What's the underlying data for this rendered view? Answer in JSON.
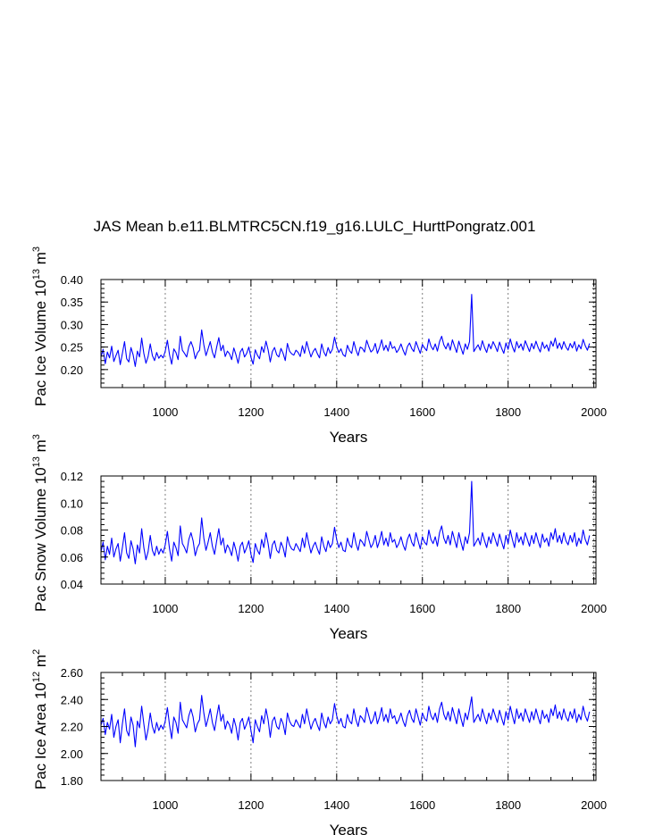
{
  "title": "JAS Mean b.e11.BLMTRC5CN.f19_g16.LULC_HurttPongratz.001",
  "colors": {
    "series": "#0000ff",
    "axes": "#000000",
    "reference": "#7f7f7f"
  },
  "chart_data": [
    {
      "type": "line",
      "title": "JAS Mean b.e11.BLMTRC5CN.f19_g16.LULC_HurttPongratz.001",
      "xlabel": "Years",
      "ylabel": "Pac Ice Volume 10¹³ m³",
      "ylabel_parts": {
        "main": "Pac Ice Volume 10",
        "exp1": "13",
        "unit": " m",
        "exp2": "3"
      },
      "xlim": [
        850,
        2005
      ],
      "ylim": [
        0.16,
        0.4
      ],
      "xticks": [
        "1000",
        "1200",
        "1400",
        "1600",
        "1800",
        "2000"
      ],
      "yticks": [
        "0.20",
        "0.25",
        "0.30",
        "0.35",
        "0.40"
      ],
      "reference_years": [
        1000,
        1200,
        1400,
        1600,
        1800,
        2000
      ],
      "grid": false,
      "series": [
        {
          "x_start": 850,
          "x_step": 5,
          "values": [
            0.228,
            0.245,
            0.213,
            0.239,
            0.226,
            0.252,
            0.218,
            0.231,
            0.243,
            0.211,
            0.236,
            0.262,
            0.224,
            0.217,
            0.249,
            0.233,
            0.207,
            0.241,
            0.228,
            0.27,
            0.236,
            0.214,
            0.229,
            0.257,
            0.231,
            0.22,
            0.238,
            0.225,
            0.232,
            0.226,
            0.241,
            0.265,
            0.233,
            0.212,
            0.246,
            0.238,
            0.222,
            0.274,
            0.243,
            0.236,
            0.228,
            0.251,
            0.262,
            0.249,
            0.224,
            0.237,
            0.243,
            0.288,
            0.255,
            0.231,
            0.246,
            0.262,
            0.239,
            0.226,
            0.25,
            0.271,
            0.242,
            0.254,
            0.229,
            0.241,
            0.235,
            0.222,
            0.248,
            0.233,
            0.214,
            0.239,
            0.247,
            0.228,
            0.236,
            0.25,
            0.227,
            0.212,
            0.244,
            0.232,
            0.224,
            0.251,
            0.238,
            0.263,
            0.244,
            0.217,
            0.24,
            0.249,
            0.233,
            0.228,
            0.247,
            0.236,
            0.22,
            0.258,
            0.241,
            0.235,
            0.232,
            0.243,
            0.238,
            0.229,
            0.253,
            0.236,
            0.262,
            0.244,
            0.228,
            0.24,
            0.247,
            0.235,
            0.226,
            0.257,
            0.239,
            0.23,
            0.249,
            0.236,
            0.245,
            0.272,
            0.251,
            0.238,
            0.246,
            0.233,
            0.229,
            0.254,
            0.242,
            0.236,
            0.262,
            0.244,
            0.231,
            0.25,
            0.247,
            0.239,
            0.265,
            0.251,
            0.239,
            0.244,
            0.258,
            0.236,
            0.249,
            0.266,
            0.243,
            0.254,
            0.241,
            0.262,
            0.247,
            0.251,
            0.238,
            0.245,
            0.257,
            0.243,
            0.232,
            0.251,
            0.259,
            0.247,
            0.24,
            0.262,
            0.249,
            0.236,
            0.256,
            0.248,
            0.242,
            0.268,
            0.252,
            0.244,
            0.257,
            0.241,
            0.262,
            0.274,
            0.255,
            0.246,
            0.259,
            0.243,
            0.266,
            0.252,
            0.238,
            0.263,
            0.248,
            0.234,
            0.257,
            0.245,
            0.262,
            0.367,
            0.24,
            0.248,
            0.255,
            0.243,
            0.264,
            0.249,
            0.238,
            0.257,
            0.246,
            0.262,
            0.252,
            0.24,
            0.261,
            0.247,
            0.236,
            0.259,
            0.245,
            0.268,
            0.251,
            0.239,
            0.262,
            0.248,
            0.257,
            0.243,
            0.264,
            0.252,
            0.24,
            0.258,
            0.246,
            0.263,
            0.249,
            0.239,
            0.261,
            0.247,
            0.255,
            0.241,
            0.263,
            0.252,
            0.27,
            0.247,
            0.259,
            0.245,
            0.262,
            0.25,
            0.243,
            0.258,
            0.248,
            0.262,
            0.241,
            0.255,
            0.246,
            0.267,
            0.253,
            0.243,
            0.258
          ]
        }
      ]
    },
    {
      "type": "line",
      "xlabel": "Years",
      "ylabel": "Pac Snow Volume 10¹³ m³",
      "ylabel_parts": {
        "main": "Pac Snow Volume 10",
        "exp1": "13",
        "unit": " m",
        "exp2": "3"
      },
      "xlim": [
        850,
        2005
      ],
      "ylim": [
        0.04,
        0.12
      ],
      "xticks": [
        "1000",
        "1200",
        "1400",
        "1600",
        "1800",
        "2000"
      ],
      "yticks": [
        "0.04",
        "0.06",
        "0.08",
        "0.10",
        "0.12"
      ],
      "reference_years": [
        1000,
        1200,
        1400,
        1600,
        1800,
        2000
      ],
      "grid": false,
      "series": [
        {
          "x_start": 850,
          "x_step": 5,
          "values": [
            0.064,
            0.071,
            0.058,
            0.068,
            0.062,
            0.074,
            0.06,
            0.066,
            0.07,
            0.057,
            0.067,
            0.078,
            0.063,
            0.059,
            0.072,
            0.066,
            0.055,
            0.069,
            0.063,
            0.081,
            0.067,
            0.058,
            0.064,
            0.076,
            0.065,
            0.061,
            0.068,
            0.062,
            0.066,
            0.063,
            0.069,
            0.079,
            0.066,
            0.057,
            0.071,
            0.067,
            0.061,
            0.083,
            0.07,
            0.067,
            0.063,
            0.073,
            0.078,
            0.072,
            0.061,
            0.067,
            0.07,
            0.089,
            0.074,
            0.065,
            0.071,
            0.078,
            0.068,
            0.062,
            0.072,
            0.081,
            0.069,
            0.074,
            0.063,
            0.069,
            0.066,
            0.061,
            0.071,
            0.065,
            0.057,
            0.068,
            0.071,
            0.063,
            0.067,
            0.072,
            0.062,
            0.056,
            0.07,
            0.065,
            0.062,
            0.073,
            0.067,
            0.078,
            0.07,
            0.059,
            0.069,
            0.072,
            0.065,
            0.063,
            0.071,
            0.067,
            0.06,
            0.075,
            0.069,
            0.066,
            0.065,
            0.07,
            0.067,
            0.064,
            0.074,
            0.067,
            0.078,
            0.07,
            0.063,
            0.068,
            0.071,
            0.066,
            0.062,
            0.075,
            0.068,
            0.064,
            0.072,
            0.067,
            0.07,
            0.082,
            0.073,
            0.067,
            0.071,
            0.065,
            0.064,
            0.074,
            0.069,
            0.067,
            0.078,
            0.07,
            0.065,
            0.073,
            0.071,
            0.068,
            0.079,
            0.073,
            0.067,
            0.07,
            0.076,
            0.067,
            0.072,
            0.079,
            0.069,
            0.074,
            0.068,
            0.078,
            0.071,
            0.073,
            0.067,
            0.07,
            0.075,
            0.069,
            0.065,
            0.073,
            0.077,
            0.071,
            0.068,
            0.078,
            0.072,
            0.066,
            0.075,
            0.071,
            0.069,
            0.08,
            0.073,
            0.07,
            0.075,
            0.068,
            0.078,
            0.083,
            0.074,
            0.07,
            0.076,
            0.069,
            0.079,
            0.073,
            0.067,
            0.078,
            0.071,
            0.065,
            0.075,
            0.07,
            0.078,
            0.116,
            0.068,
            0.071,
            0.074,
            0.069,
            0.078,
            0.072,
            0.067,
            0.075,
            0.07,
            0.078,
            0.073,
            0.068,
            0.077,
            0.071,
            0.066,
            0.076,
            0.07,
            0.08,
            0.073,
            0.067,
            0.078,
            0.071,
            0.075,
            0.069,
            0.078,
            0.073,
            0.068,
            0.076,
            0.07,
            0.078,
            0.072,
            0.067,
            0.077,
            0.071,
            0.074,
            0.068,
            0.078,
            0.073,
            0.081,
            0.071,
            0.076,
            0.07,
            0.078,
            0.072,
            0.069,
            0.076,
            0.071,
            0.078,
            0.068,
            0.074,
            0.07,
            0.08,
            0.073,
            0.069,
            0.076
          ]
        }
      ]
    },
    {
      "type": "line",
      "xlabel": "Years",
      "ylabel": "Pac Ice Area 10¹² m²",
      "ylabel_parts": {
        "main": "Pac Ice Area 10",
        "exp1": "12",
        "unit": " m",
        "exp2": "2"
      },
      "xlim": [
        850,
        2005
      ],
      "ylim": [
        1.8,
        2.6
      ],
      "xticks": [
        "1000",
        "1200",
        "1400",
        "1600",
        "1800",
        "2000"
      ],
      "yticks": [
        "1.80",
        "2.00",
        "2.20",
        "2.40",
        "2.60"
      ],
      "reference_years": [
        1000,
        1200,
        1400,
        1600,
        1800,
        2000
      ],
      "grid": false,
      "series": [
        {
          "x_start": 850,
          "x_step": 5,
          "values": [
            2.21,
            2.26,
            2.14,
            2.23,
            2.18,
            2.29,
            2.12,
            2.2,
            2.25,
            2.08,
            2.22,
            2.33,
            2.17,
            2.13,
            2.27,
            2.21,
            2.05,
            2.24,
            2.19,
            2.35,
            2.22,
            2.1,
            2.18,
            2.3,
            2.2,
            2.15,
            2.23,
            2.17,
            2.21,
            2.18,
            2.24,
            2.34,
            2.21,
            2.11,
            2.27,
            2.23,
            2.15,
            2.38,
            2.25,
            2.22,
            2.19,
            2.28,
            2.33,
            2.27,
            2.16,
            2.22,
            2.25,
            2.43,
            2.3,
            2.2,
            2.26,
            2.33,
            2.23,
            2.17,
            2.27,
            2.36,
            2.24,
            2.29,
            2.18,
            2.24,
            2.21,
            2.15,
            2.26,
            2.2,
            2.1,
            2.23,
            2.26,
            2.18,
            2.22,
            2.27,
            2.17,
            2.08,
            2.25,
            2.2,
            2.16,
            2.28,
            2.22,
            2.33,
            2.25,
            2.12,
            2.24,
            2.27,
            2.2,
            2.18,
            2.26,
            2.22,
            2.14,
            2.3,
            2.24,
            2.21,
            2.2,
            2.25,
            2.22,
            2.19,
            2.29,
            2.22,
            2.33,
            2.25,
            2.18,
            2.23,
            2.26,
            2.21,
            2.17,
            2.3,
            2.23,
            2.19,
            2.27,
            2.22,
            2.25,
            2.37,
            2.28,
            2.22,
            2.26,
            2.2,
            2.19,
            2.29,
            2.24,
            2.22,
            2.33,
            2.25,
            2.2,
            2.28,
            2.26,
            2.23,
            2.34,
            2.28,
            2.22,
            2.25,
            2.31,
            2.22,
            2.27,
            2.34,
            2.24,
            2.29,
            2.23,
            2.33,
            2.26,
            2.28,
            2.22,
            2.25,
            2.3,
            2.24,
            2.2,
            2.28,
            2.32,
            2.26,
            2.23,
            2.33,
            2.27,
            2.21,
            2.3,
            2.26,
            2.24,
            2.35,
            2.28,
            2.25,
            2.3,
            2.23,
            2.33,
            2.38,
            2.29,
            2.25,
            2.31,
            2.24,
            2.34,
            2.28,
            2.22,
            2.33,
            2.26,
            2.2,
            2.3,
            2.25,
            2.33,
            2.42,
            2.23,
            2.26,
            2.29,
            2.24,
            2.33,
            2.27,
            2.22,
            2.3,
            2.25,
            2.33,
            2.28,
            2.23,
            2.32,
            2.26,
            2.21,
            2.31,
            2.25,
            2.35,
            2.28,
            2.22,
            2.33,
            2.26,
            2.3,
            2.24,
            2.33,
            2.28,
            2.23,
            2.31,
            2.25,
            2.33,
            2.27,
            2.22,
            2.32,
            2.26,
            2.29,
            2.23,
            2.33,
            2.28,
            2.36,
            2.26,
            2.31,
            2.25,
            2.33,
            2.27,
            2.24,
            2.31,
            2.26,
            2.33,
            2.23,
            2.29,
            2.25,
            2.35,
            2.28,
            2.24,
            2.31
          ]
        }
      ]
    }
  ]
}
